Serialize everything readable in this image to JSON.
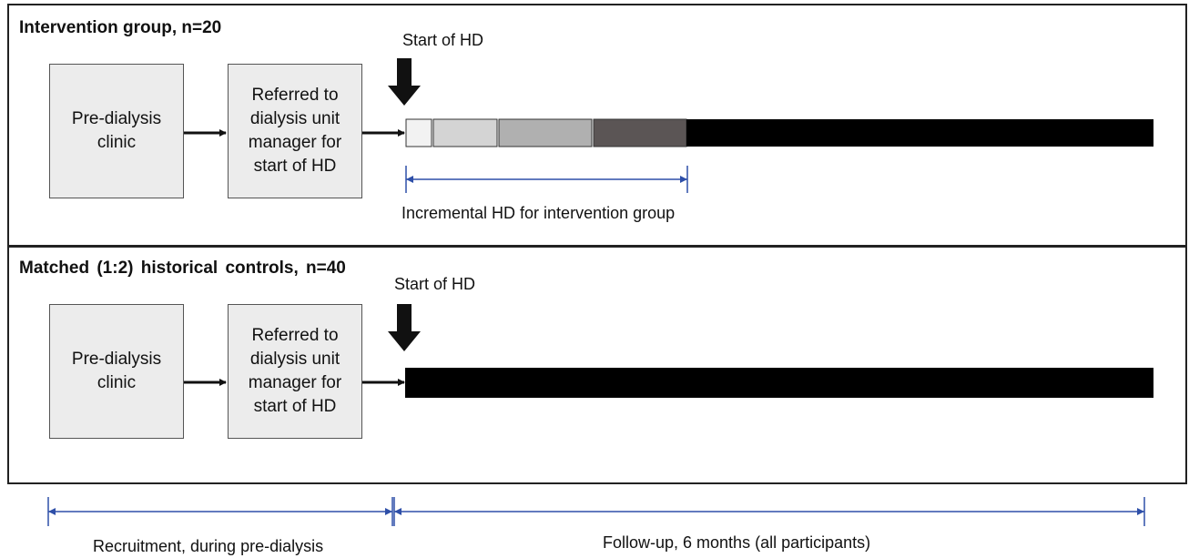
{
  "intervention": {
    "title": "Intervention group, n=20",
    "box1": "Pre-dialysis clinic",
    "box2": "Referred to dialysis unit manager for start of HD",
    "start_label": "Start of HD",
    "span_label": "Incremental HD for intervention group",
    "segment_colors": [
      "#f2f2f2",
      "#d4d4d4",
      "#b0b0b0",
      "#5b5555",
      "#000000"
    ]
  },
  "controls": {
    "title": "Matched (1:2) historical controls, n=40",
    "box1": "Pre-dialysis clinic",
    "box2": "Referred to dialysis unit manager for start of HD",
    "start_label": "Start of HD"
  },
  "timeline": {
    "recruitment_label": "Recruitment, during pre-dialysis",
    "followup_label": "Follow-up, 6 months (all participants)",
    "bracket_color": "#2e4fa8"
  }
}
